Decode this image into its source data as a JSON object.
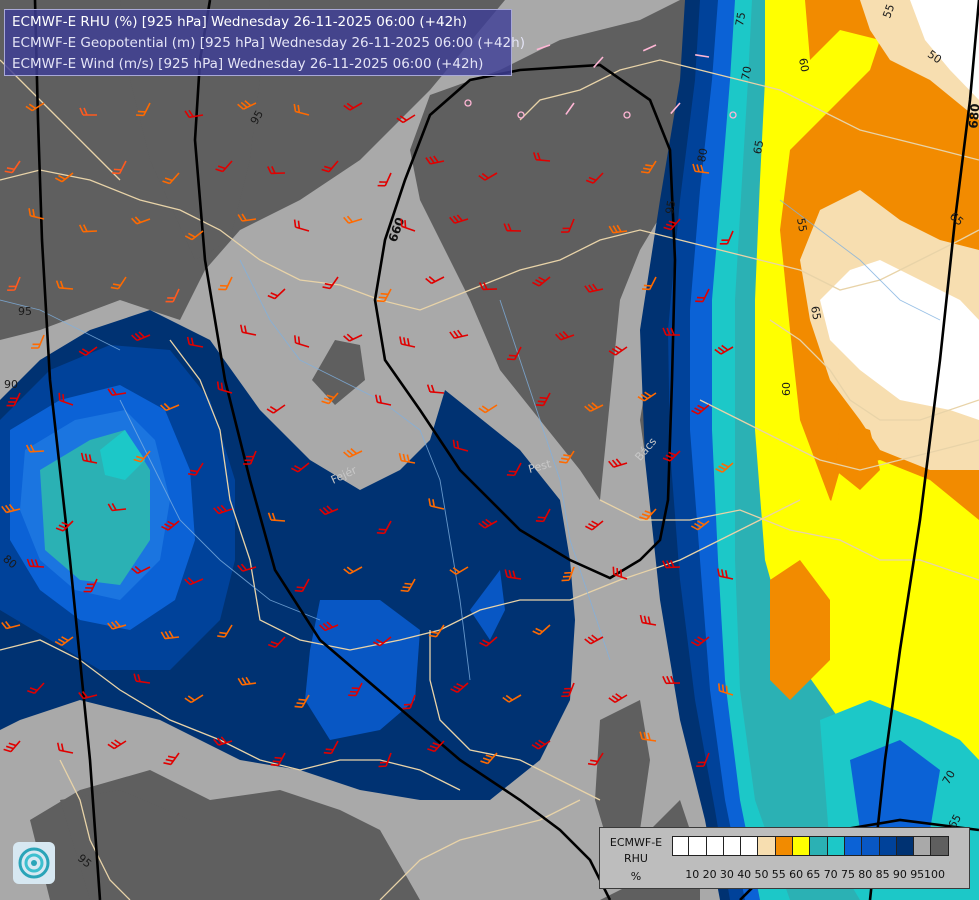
{
  "title_lines": [
    "ECMWF-E RHU (%) [925 hPa] Wednesday 26-11-2025 06:00 (+42h)",
    "ECMWF-E Geopotential (m) [925 hPa] Wednesday 26-11-2025 06:00 (+42h)",
    "ECMWF-E Wind (m/s) [925 hPa] Wednesday 26-11-2025 06:00 (+42h)"
  ],
  "legend": {
    "model": "ECMWF-E",
    "variable": "RHU",
    "unit": "%",
    "colors": [
      "#ffffff",
      "#ffffff",
      "#ffffff",
      "#ffffff",
      "#ffffff",
      "#f7deb0",
      "#f28b00",
      "#ffff00",
      "#2bb1b4",
      "#1cc8c8",
      "#0b62d6",
      "#0857c4",
      "#00429a",
      "#003272",
      "#a9a9a9",
      "#5f5f5f"
    ],
    "ticks": [
      "10",
      "20",
      "30",
      "40",
      "50",
      "55",
      "60",
      "65",
      "70",
      "75",
      "80",
      "85",
      "90",
      "95",
      "100"
    ]
  },
  "contour_labels": {
    "rhu": [
      "95",
      "95",
      "90",
      "80",
      "95",
      "95",
      "80",
      "65",
      "75",
      "70",
      "60",
      "55",
      "50",
      "55",
      "65",
      "60",
      "65",
      "70",
      "65"
    ],
    "geopotential": [
      "660",
      "680"
    ]
  },
  "place_labels": [
    "Pest",
    "Fejér",
    "Bács"
  ],
  "logo_icon": "ecmwf-logo-icon"
}
